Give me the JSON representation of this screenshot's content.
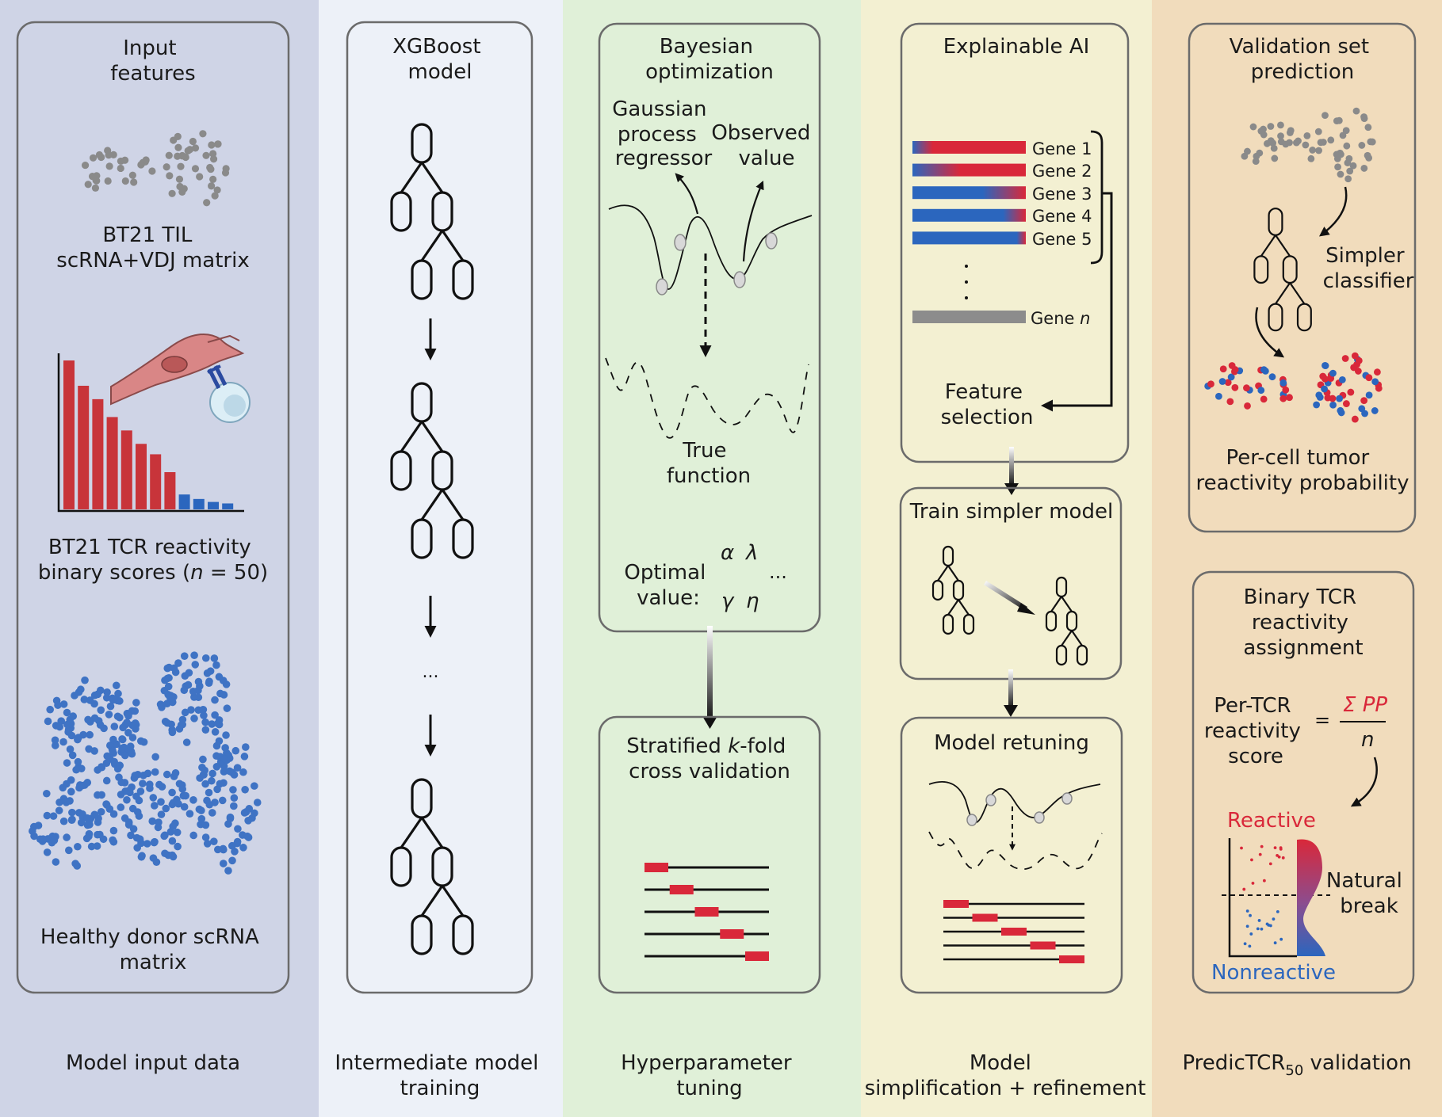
{
  "panels": [
    {
      "caption": [
        "Model input data"
      ],
      "boxes": [
        {
          "title": [
            "Input",
            "features"
          ]
        }
      ],
      "labels": {
        "til": [
          "BT21 TIL",
          "scRNA+VDJ matrix"
        ],
        "tcr_line1": "BT21 TCR reactivity",
        "tcr_line2_prefix": "binary scores (",
        "tcr_line2_var": "n",
        "tcr_line2_suffix": " = 50)",
        "healthy": [
          "Healthy donor scRNA",
          "matrix"
        ]
      }
    },
    {
      "caption": [
        "Intermediate model",
        "training"
      ],
      "boxes": [
        {
          "title": [
            "XGBoost",
            "model"
          ]
        }
      ],
      "labels": {
        "ellipsis": "..."
      }
    },
    {
      "caption": [
        "Hyperparameter",
        "tuning"
      ],
      "boxes": [
        {
          "title": [
            "Bayesian",
            "optimization"
          ]
        },
        {
          "title_prefix": "Stratified ",
          "title_var": "k",
          "title_suffix": "-fold",
          "title_line2": "cross validation"
        }
      ],
      "labels": {
        "gpr": [
          "Gaussian",
          "process",
          "regressor"
        ],
        "observed": [
          "Observed",
          "value"
        ],
        "true_fn": [
          "True",
          "function"
        ],
        "optimal": [
          "Optimal",
          "value:"
        ],
        "params": [
          "α",
          "λ",
          "...",
          "γ",
          "η"
        ]
      }
    },
    {
      "caption": [
        "Model",
        "simplification + refinement"
      ],
      "boxes": [
        {
          "title": [
            "Explainable AI"
          ]
        },
        {
          "title": [
            "Train simpler model"
          ]
        },
        {
          "title": [
            "Model retuning"
          ]
        }
      ],
      "labels": {
        "genes": [
          "Gene 1",
          "Gene 2",
          "Gene 3",
          "Gene 4",
          "Gene 5"
        ],
        "gene_n_prefix": "Gene ",
        "gene_n_var": "n",
        "feature_selection": [
          "Feature",
          "selection"
        ]
      }
    },
    {
      "caption_prefix": "PredicTCR",
      "caption_sub": "50",
      "caption_suffix": " validation",
      "boxes": [
        {
          "title": [
            "Validation set",
            "prediction"
          ]
        },
        {
          "title": [
            "Binary TCR",
            "reactivity",
            "assignment"
          ]
        }
      ],
      "labels": {
        "simpler": [
          "Simpler",
          "classifier"
        ],
        "percell": [
          "Per-cell tumor",
          "reactivity probability"
        ],
        "pertcr": [
          "Per-TCR",
          "reactivity",
          "score"
        ],
        "equals": "=",
        "sum_pp": "Σ PP",
        "denom": "n",
        "reactive": "Reactive",
        "nonreactive": "Nonreactive",
        "natural": [
          "Natural",
          "break"
        ]
      }
    }
  ],
  "colors": {
    "panel_bg": [
      "#cfd4e6",
      "#edf1f8",
      "#e0f0d8",
      "#f3f0d2",
      "#f1dcbc"
    ],
    "red": "#d9283a",
    "blue": "#2b66be",
    "dot_grey": "#888888",
    "cell_pink": "#d98686"
  },
  "bar_chart": {
    "values": [
      1.0,
      0.83,
      0.74,
      0.62,
      0.53,
      0.44,
      0.37,
      0.25,
      0.1,
      0.07,
      0.05,
      0.04
    ],
    "reactive_count": 8
  },
  "gene_bars": {
    "blue_fraction": [
      0.18,
      0.42,
      0.62,
      0.8,
      0.92
    ]
  },
  "kfold": {
    "folds": 5
  }
}
